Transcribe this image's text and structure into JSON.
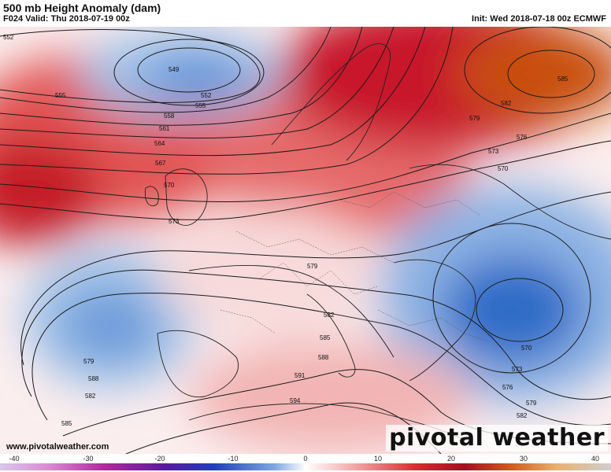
{
  "header": {
    "title": "500 mb Height Anomaly (dam)",
    "valid": "F024 Valid: Thu 2018-07-19 00z",
    "init": "Init: Wed 2018-07-18 00z ECMWF"
  },
  "footer": {
    "site": "www.pivotalweather.com",
    "brand": "pivotal weather"
  },
  "contour_labels": [
    "552",
    "549",
    "555",
    "552",
    "555",
    "558",
    "561",
    "564",
    "567",
    "570",
    "573",
    "579",
    "582",
    "585",
    "588",
    "591",
    "594",
    "585",
    "582",
    "579",
    "576",
    "573",
    "570",
    "570",
    "573",
    "576",
    "579",
    "582",
    "585",
    "582",
    "579",
    "588"
  ],
  "colorbar": {
    "ticks": [
      "-40",
      "-30",
      "-20",
      "-10",
      "0",
      "10",
      "20",
      "30",
      "40"
    ]
  },
  "colors": {
    "positive_strong": "#b81020",
    "positive_mid": "#e05050",
    "positive_light": "#f3c0c0",
    "negative_strong": "#2f6cc8",
    "negative_light": "#c3d8ef",
    "peak_positive": "#c85010"
  }
}
